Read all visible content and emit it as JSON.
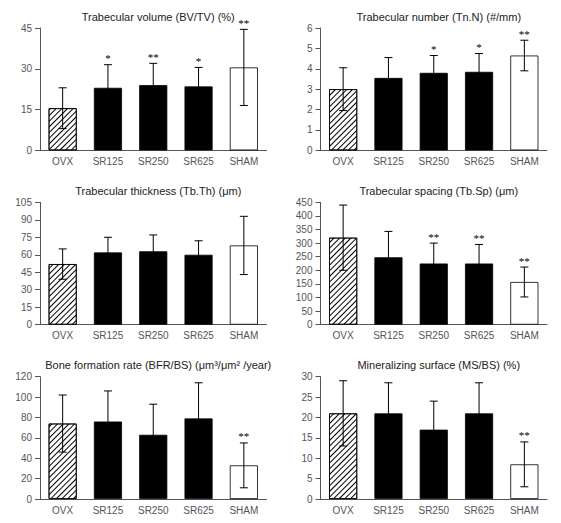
{
  "chart_data": [
    {
      "type": "bar",
      "title": "Trabecular volume (BV/TV) (%)",
      "categories": [
        "OVX",
        "SR125",
        "SR250",
        "SR625",
        "SHAM"
      ],
      "values": [
        15.5,
        23.0,
        24.0,
        23.5,
        30.5
      ],
      "errors": [
        7.5,
        8.5,
        8.0,
        7.0,
        14.0
      ],
      "colors": [
        "hatch",
        "black",
        "black",
        "black",
        "white"
      ],
      "annotations": [
        {
          "x": "SR125",
          "text": "*"
        },
        {
          "x": "SR250",
          "text": "**"
        },
        {
          "x": "SR625",
          "text": "*"
        },
        {
          "x": "SHAM",
          "text": "**"
        }
      ],
      "ylim": [
        0,
        45
      ],
      "yticks": [
        0,
        15,
        30,
        45
      ],
      "grid": false
    },
    {
      "type": "bar",
      "title": "Trabecular number (Tn.N) (#/mm)",
      "categories": [
        "OVX",
        "SR125",
        "SR250",
        "SR625",
        "SHAM"
      ],
      "values": [
        3.0,
        3.55,
        3.8,
        3.85,
        4.65
      ],
      "errors": [
        1.05,
        1.0,
        0.85,
        0.9,
        0.75
      ],
      "colors": [
        "hatch",
        "black",
        "black",
        "black",
        "white"
      ],
      "annotations": [
        {
          "x": "SR250",
          "text": "*"
        },
        {
          "x": "SR625",
          "text": "*"
        },
        {
          "x": "SHAM",
          "text": "**"
        }
      ],
      "ylim": [
        0,
        6
      ],
      "yticks": [
        0,
        1,
        2,
        3,
        4,
        5,
        6
      ],
      "grid": false
    },
    {
      "type": "bar",
      "title": "Trabecular thickness (Tb.Th) (μm)",
      "categories": [
        "OVX",
        "SR125",
        "SR250",
        "SR625",
        "SHAM"
      ],
      "values": [
        52.0,
        62.0,
        63.0,
        60.0,
        68.0
      ],
      "errors": [
        13.0,
        13.0,
        14.0,
        12.0,
        25.0
      ],
      "colors": [
        "hatch",
        "black",
        "black",
        "black",
        "white"
      ],
      "ylim": [
        0,
        105
      ],
      "yticks": [
        0,
        15,
        30,
        45,
        60,
        75,
        90,
        105
      ],
      "grid": false
    },
    {
      "type": "bar",
      "title": "Trabecular spacing (Tb.Sp) (μm)",
      "categories": [
        "OVX",
        "SR125",
        "SR250",
        "SR625",
        "SHAM"
      ],
      "values": [
        320.0,
        248.0,
        225.0,
        225.0,
        157.0
      ],
      "errors": [
        120.0,
        95.0,
        75.0,
        70.0,
        55.0
      ],
      "colors": [
        "hatch",
        "black",
        "black",
        "black",
        "white"
      ],
      "annotations": [
        {
          "x": "SR250",
          "text": "**"
        },
        {
          "x": "SR625",
          "text": "**"
        },
        {
          "x": "SHAM",
          "text": "**"
        }
      ],
      "ylim": [
        0,
        450
      ],
      "yticks": [
        0,
        50,
        100,
        150,
        200,
        250,
        300,
        350,
        400,
        450
      ],
      "grid": false
    },
    {
      "type": "bar",
      "title": "Bone formation rate (BFR/BS) (μm³/μm² /year)",
      "categories": [
        "OVX",
        "SR125",
        "SR250",
        "SR625",
        "SHAM"
      ],
      "values": [
        74.0,
        76.0,
        63.0,
        79.0,
        33.0
      ],
      "errors": [
        28.0,
        30.0,
        30.0,
        35.0,
        22.0
      ],
      "colors": [
        "hatch",
        "black",
        "black",
        "black",
        "white"
      ],
      "annotations": [
        {
          "x": "SHAM",
          "text": "**"
        }
      ],
      "ylim": [
        0,
        120
      ],
      "yticks": [
        0,
        20,
        40,
        60,
        80,
        100,
        120
      ],
      "grid": false
    },
    {
      "type": "bar",
      "title": "Mineralizing surface (MS/BS) (%)",
      "categories": [
        "OVX",
        "SR125",
        "SR250",
        "SR625",
        "SHAM"
      ],
      "values": [
        21.0,
        21.0,
        17.0,
        21.0,
        8.5
      ],
      "errors": [
        8.0,
        7.5,
        7.0,
        7.5,
        5.5
      ],
      "colors": [
        "hatch",
        "black",
        "black",
        "black",
        "white"
      ],
      "annotations": [
        {
          "x": "SHAM",
          "text": "**"
        }
      ],
      "ylim": [
        0,
        30
      ],
      "yticks": [
        0,
        5,
        10,
        15,
        20,
        25,
        30
      ],
      "grid": false
    }
  ]
}
